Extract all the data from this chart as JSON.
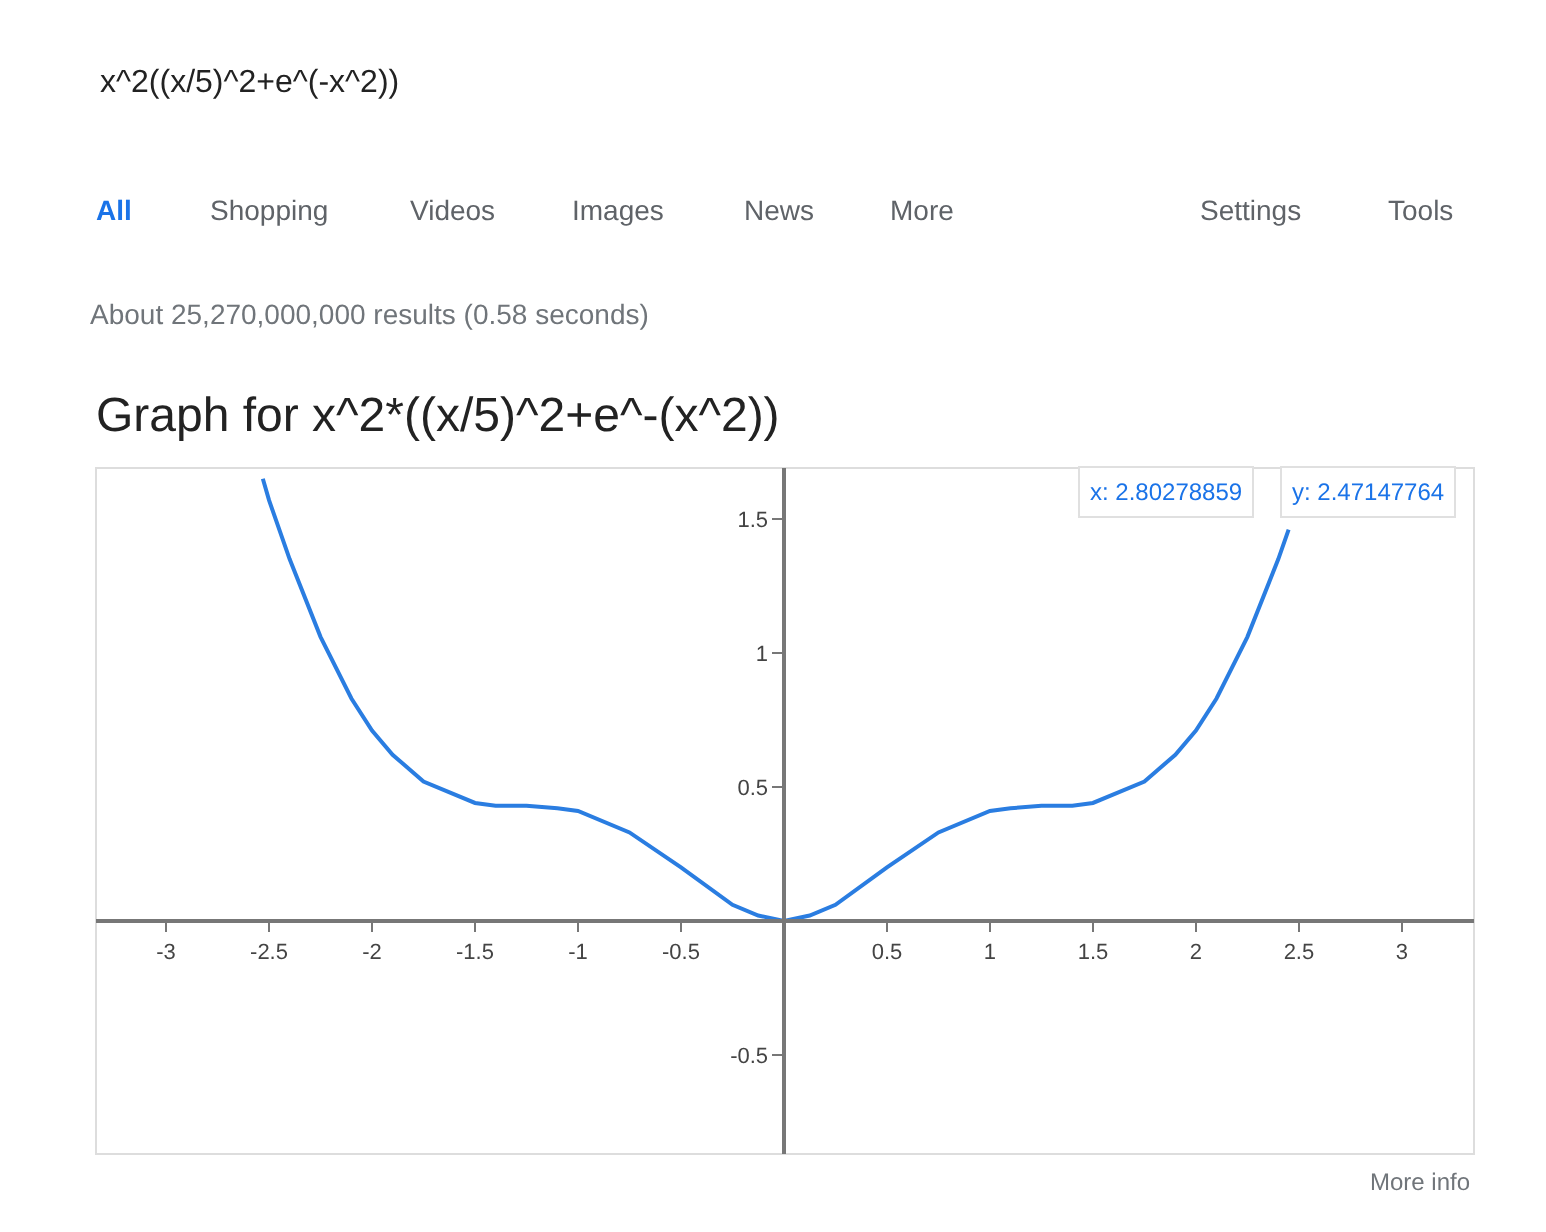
{
  "chart_data": {
    "type": "line",
    "title": "Graph for x^2*((x/5)^2+e^-(x^2))",
    "x": [
      -2.53,
      -2.5,
      -2.4,
      -2.25,
      -2.1,
      -2,
      -1.9,
      -1.75,
      -1.5,
      -1.4,
      -1.25,
      -1.1,
      -1,
      -0.75,
      -0.5,
      -0.25,
      -0.125,
      0,
      0.125,
      0.25,
      0.5,
      0.75,
      1,
      1.1,
      1.25,
      1.4,
      1.5,
      1.75,
      1.9,
      2,
      2.1,
      2.25,
      2.4,
      2.45
    ],
    "series": [
      {
        "color": "#2a7de1",
        "values": [
          1.65,
          1.57,
          1.35,
          1.06,
          0.83,
          0.71,
          0.62,
          0.52,
          0.44,
          0.43,
          0.43,
          0.42,
          0.41,
          0.33,
          0.2,
          0.06,
          0.02,
          0,
          0.02,
          0.06,
          0.2,
          0.33,
          0.41,
          0.42,
          0.43,
          0.43,
          0.44,
          0.52,
          0.62,
          0.71,
          0.83,
          1.06,
          1.35,
          1.46
        ]
      }
    ],
    "xlim": [
      -3.34,
      3.35
    ],
    "ylim": [
      -0.87,
      1.69
    ],
    "xticks": [
      -3,
      -2.5,
      -2,
      -1.5,
      -1,
      -0.5,
      0.5,
      1,
      1.5,
      2,
      2.5,
      3
    ],
    "yticks": [
      -0.5,
      0.5,
      1,
      1.5
    ],
    "marker": "none",
    "line_style": "solid",
    "annotations": [
      "x^2((x/5)^2+e^(-x^2))",
      "All",
      "Shopping",
      "Videos",
      "Images",
      "News",
      "More",
      "Settings",
      "Tools",
      "About 25,270,000,000 results (0.58 seconds)",
      "x: 2.80278859",
      "y: 2.47147764",
      "More info"
    ]
  }
}
